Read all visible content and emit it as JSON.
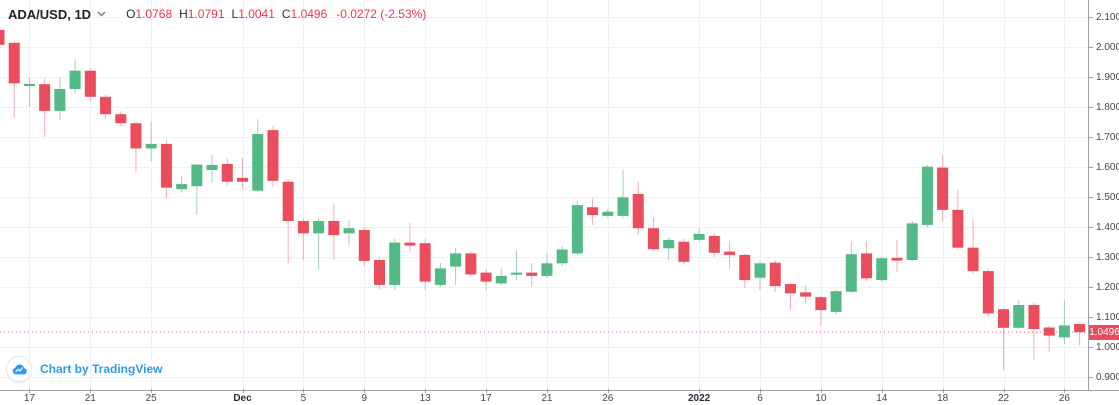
{
  "header": {
    "symbol": "ADA/USD, 1D",
    "o_label": "O",
    "o_value": "1.0768",
    "h_label": "H",
    "h_value": "1.0791",
    "l_label": "L",
    "l_value": "1.0041",
    "c_label": "C",
    "c_value": "1.0496",
    "change": "-0.0272 (-2.53%)"
  },
  "attribution": {
    "label": "Chart by TradingView"
  },
  "price_axis": {
    "labels": [
      "2.1000",
      "2.0000",
      "1.9000",
      "1.8000",
      "1.7000",
      "1.6000",
      "1.5000",
      "1.4000",
      "1.3000",
      "1.2000",
      "1.1000",
      "1.0000",
      "0.9000"
    ],
    "current_price_label": "1.0496"
  },
  "chart_data": {
    "type": "candlestick",
    "symbol": "ADA/USD",
    "interval": "1D",
    "y_min": 0.9,
    "y_max": 2.1,
    "y_step": 0.1,
    "grid": true,
    "price_line": 1.0496,
    "last_bar": {
      "open": 1.0768,
      "high": 1.0791,
      "low": 1.0041,
      "close": 1.0496,
      "change": -0.0272,
      "change_pct": -2.53
    },
    "x_labels": [
      {
        "index": 2,
        "text": "17",
        "bold": false
      },
      {
        "index": 6,
        "text": "21",
        "bold": false
      },
      {
        "index": 10,
        "text": "25",
        "bold": false
      },
      {
        "index": 16,
        "text": "Dec",
        "bold": true
      },
      {
        "index": 20,
        "text": "5",
        "bold": false
      },
      {
        "index": 24,
        "text": "9",
        "bold": false
      },
      {
        "index": 28,
        "text": "13",
        "bold": false
      },
      {
        "index": 32,
        "text": "17",
        "bold": false
      },
      {
        "index": 36,
        "text": "21",
        "bold": false
      },
      {
        "index": 40,
        "text": "26",
        "bold": false
      },
      {
        "index": 46,
        "text": "2022",
        "bold": true
      },
      {
        "index": 50,
        "text": "6",
        "bold": false
      },
      {
        "index": 54,
        "text": "10",
        "bold": false
      },
      {
        "index": 58,
        "text": "14",
        "bold": false
      },
      {
        "index": 62,
        "text": "18",
        "bold": false
      },
      {
        "index": 66,
        "text": "22",
        "bold": false
      },
      {
        "index": 70,
        "text": "26",
        "bold": false
      }
    ],
    "candles": [
      [
        2.057,
        2.062,
        1.995,
        2.007
      ],
      [
        2.014,
        2.02,
        1.763,
        1.879
      ],
      [
        1.87,
        1.897,
        1.8,
        1.877
      ],
      [
        1.876,
        1.896,
        1.701,
        1.787
      ],
      [
        1.787,
        1.899,
        1.757,
        1.86
      ],
      [
        1.86,
        1.957,
        1.845,
        1.921
      ],
      [
        1.921,
        1.93,
        1.82,
        1.834
      ],
      [
        1.834,
        1.84,
        1.76,
        1.776
      ],
      [
        1.776,
        1.786,
        1.737,
        1.746
      ],
      [
        1.746,
        1.75,
        1.584,
        1.662
      ],
      [
        1.662,
        1.751,
        1.618,
        1.677
      ],
      [
        1.677,
        1.69,
        1.496,
        1.531
      ],
      [
        1.526,
        1.572,
        1.515,
        1.543
      ],
      [
        1.536,
        1.61,
        1.442,
        1.608
      ],
      [
        1.59,
        1.64,
        1.548,
        1.607
      ],
      [
        1.61,
        1.63,
        1.537,
        1.551
      ],
      [
        1.564,
        1.63,
        1.529,
        1.551
      ],
      [
        1.521,
        1.759,
        1.518,
        1.71
      ],
      [
        1.723,
        1.737,
        1.533,
        1.554
      ],
      [
        1.551,
        1.56,
        1.28,
        1.42
      ],
      [
        1.42,
        1.43,
        1.29,
        1.379
      ],
      [
        1.379,
        1.43,
        1.257,
        1.42
      ],
      [
        1.42,
        1.479,
        1.29,
        1.373
      ],
      [
        1.379,
        1.423,
        1.34,
        1.396
      ],
      [
        1.39,
        1.4,
        1.27,
        1.287
      ],
      [
        1.29,
        1.3,
        1.193,
        1.207
      ],
      [
        1.207,
        1.36,
        1.19,
        1.348
      ],
      [
        1.348,
        1.414,
        1.318,
        1.338
      ],
      [
        1.346,
        1.36,
        1.19,
        1.218
      ],
      [
        1.207,
        1.28,
        1.2,
        1.262
      ],
      [
        1.268,
        1.329,
        1.207,
        1.312
      ],
      [
        1.312,
        1.32,
        1.235,
        1.242
      ],
      [
        1.248,
        1.26,
        1.188,
        1.218
      ],
      [
        1.212,
        1.262,
        1.205,
        1.237
      ],
      [
        1.241,
        1.323,
        1.223,
        1.248
      ],
      [
        1.248,
        1.279,
        1.201,
        1.237
      ],
      [
        1.237,
        1.312,
        1.23,
        1.279
      ],
      [
        1.279,
        1.335,
        1.27,
        1.325
      ],
      [
        1.312,
        1.488,
        1.307,
        1.473
      ],
      [
        1.466,
        1.496,
        1.407,
        1.44
      ],
      [
        1.437,
        1.46,
        1.43,
        1.451
      ],
      [
        1.437,
        1.59,
        1.43,
        1.499
      ],
      [
        1.51,
        1.551,
        1.373,
        1.396
      ],
      [
        1.396,
        1.432,
        1.321,
        1.326
      ],
      [
        1.329,
        1.365,
        1.29,
        1.357
      ],
      [
        1.351,
        1.36,
        1.275,
        1.284
      ],
      [
        1.357,
        1.396,
        1.35,
        1.377
      ],
      [
        1.37,
        1.38,
        1.3,
        1.314
      ],
      [
        1.318,
        1.354,
        1.26,
        1.307
      ],
      [
        1.307,
        1.31,
        1.196,
        1.223
      ],
      [
        1.231,
        1.285,
        1.19,
        1.279
      ],
      [
        1.281,
        1.29,
        1.184,
        1.203
      ],
      [
        1.21,
        1.215,
        1.123,
        1.179
      ],
      [
        1.182,
        1.207,
        1.146,
        1.168
      ],
      [
        1.166,
        1.17,
        1.068,
        1.123
      ],
      [
        1.117,
        1.19,
        1.11,
        1.186
      ],
      [
        1.184,
        1.351,
        1.18,
        1.309
      ],
      [
        1.312,
        1.353,
        1.22,
        1.229
      ],
      [
        1.223,
        1.3,
        1.218,
        1.296
      ],
      [
        1.297,
        1.357,
        1.251,
        1.288
      ],
      [
        1.29,
        1.42,
        1.285,
        1.412
      ],
      [
        1.407,
        1.607,
        1.399,
        1.601
      ],
      [
        1.598,
        1.64,
        1.42,
        1.457
      ],
      [
        1.457,
        1.523,
        1.325,
        1.331
      ],
      [
        1.331,
        1.426,
        1.245,
        1.253
      ],
      [
        1.253,
        1.26,
        1.101,
        1.112
      ],
      [
        1.126,
        1.13,
        0.923,
        1.064
      ],
      [
        1.064,
        1.157,
        1.06,
        1.14
      ],
      [
        1.14,
        1.147,
        0.957,
        1.06
      ],
      [
        1.065,
        1.07,
        0.984,
        1.038
      ],
      [
        1.032,
        1.155,
        1.01,
        1.072
      ],
      [
        1.0768,
        1.0791,
        1.0041,
        1.0496
      ]
    ]
  },
  "colors": {
    "up": "#53b987",
    "down": "#eb4d5c",
    "wick_up": "#9fd0bb",
    "wick_down": "#f3aeb8",
    "grid": "#eef2f8",
    "axis_line": "#9b9fa7",
    "axis_text": "#44474f",
    "value_red": "#f23645",
    "badge_bg": "#eb4d5c",
    "badge_text": "#ffffff",
    "attribution_blue": "#2d9bf0"
  }
}
